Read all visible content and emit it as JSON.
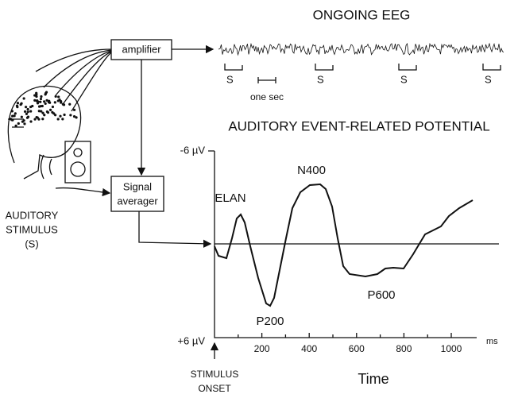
{
  "eeg_title": "ONGOING EEG",
  "amplifier": "amplifier",
  "signal_averager": [
    "Signal",
    "averager"
  ],
  "stimulus_label": [
    "AUDITORY",
    "STIMULUS",
    "(S)"
  ],
  "eeg_markers": [
    "S",
    "S",
    "S",
    "S"
  ],
  "one_sec": "one sec",
  "erp": {
    "title": "AUDITORY EVENT-RELATED POTENTIAL",
    "y_top": "-6 µV",
    "y_bottom": "+6 µV",
    "x_ticks": [
      200,
      400,
      600,
      800,
      1000
    ],
    "x_unit": "ms",
    "x_label": "Time",
    "onset": [
      "STIMULUS",
      "ONSET"
    ],
    "peaks": [
      "ELAN",
      "P200",
      "N400",
      "P600"
    ]
  }
}
